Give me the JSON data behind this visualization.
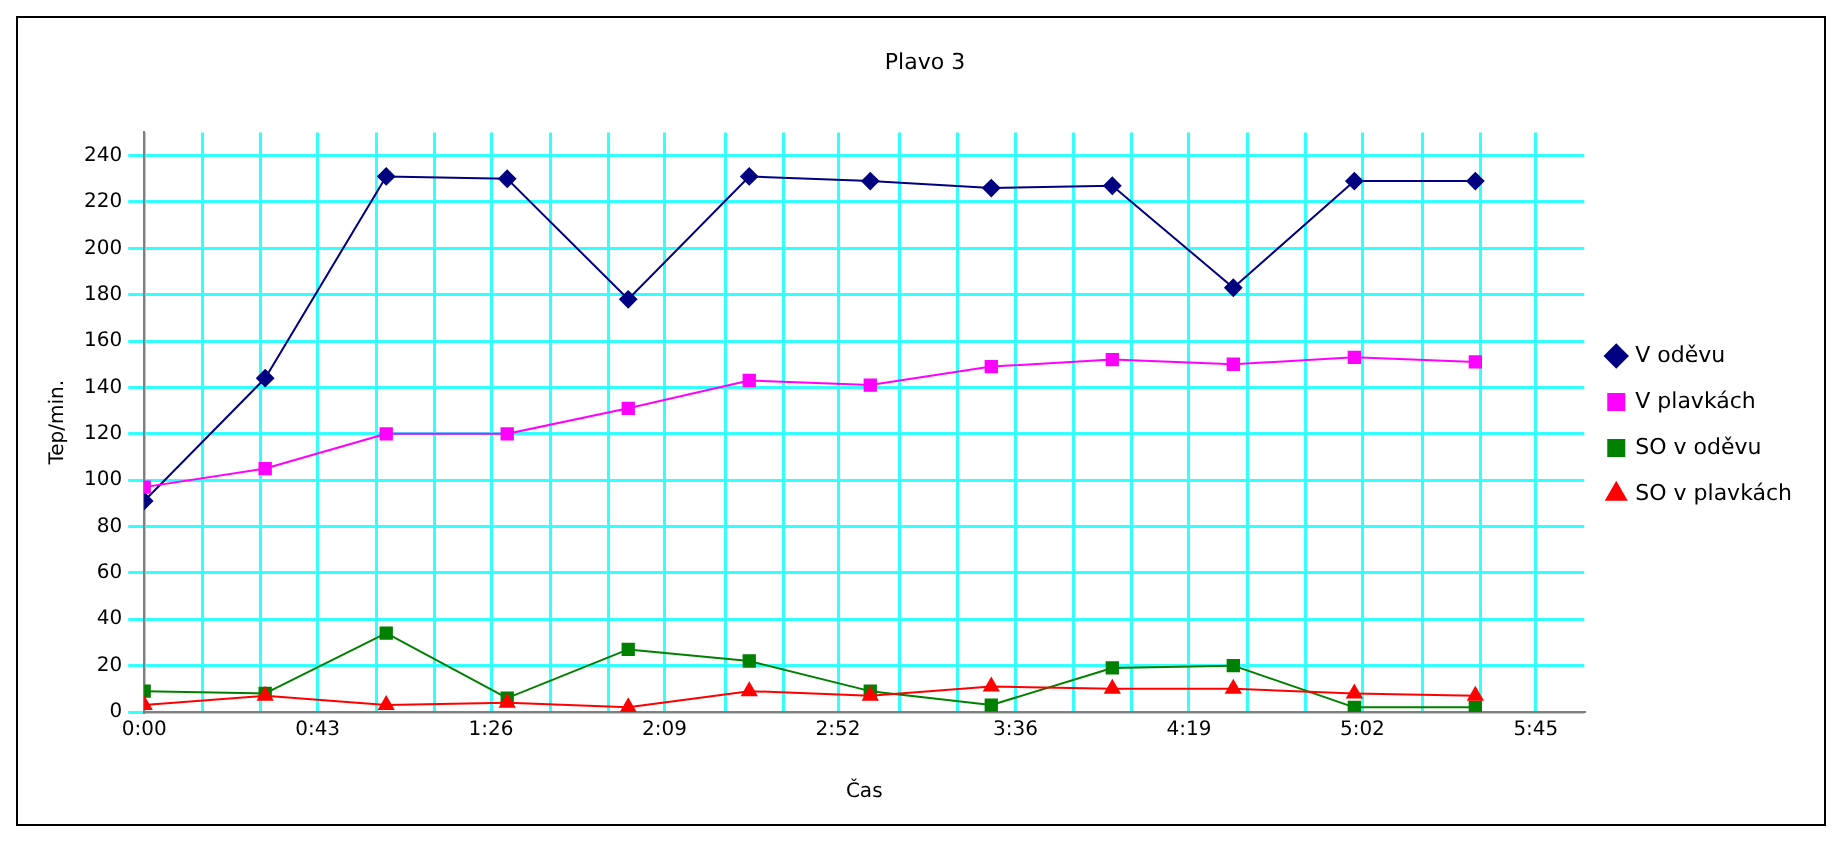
{
  "chart_data": {
    "type": "line",
    "title": "Plavo 3",
    "xlabel": "Čas",
    "ylabel": "Tep/min.",
    "x": [
      0,
      0.5,
      1,
      1.5,
      2,
      2.5,
      3,
      3.5,
      4,
      4.5,
      5,
      5.5
    ],
    "series": [
      {
        "name": "V oděvu",
        "color": "#000080",
        "marker": "diamond",
        "values": [
          91,
          144,
          231,
          230,
          178,
          231,
          229,
          226,
          227,
          183,
          229,
          229
        ]
      },
      {
        "name": "V plavkách",
        "color": "#ff00ff",
        "marker": "square",
        "values": [
          97,
          105,
          120,
          120,
          131,
          143,
          141,
          149,
          152,
          150,
          153,
          151
        ]
      },
      {
        "name": "SO v oděvu",
        "color": "#008000",
        "marker": "square",
        "values": [
          9,
          8,
          34,
          6,
          27,
          22,
          9,
          3,
          19,
          20,
          2,
          2
        ]
      },
      {
        "name": "SO v plavkách",
        "color": "#ff0000",
        "marker": "triangle",
        "values": [
          3,
          7,
          3,
          4,
          2,
          9,
          7,
          11,
          10,
          10,
          8,
          7
        ]
      }
    ],
    "xlim": [
      0,
      5.95
    ],
    "xticks": [
      {
        "value": 0,
        "label": "0:00"
      },
      {
        "value": 0.24,
        "label": null
      },
      {
        "value": 0.48,
        "label": null
      },
      {
        "value": 0.7167,
        "label": "0:43"
      },
      {
        "value": 0.96,
        "label": null
      },
      {
        "value": 1.2,
        "label": null
      },
      {
        "value": 1.4333,
        "label": "1:26"
      },
      {
        "value": 1.68,
        "label": null
      },
      {
        "value": 1.92,
        "label": null
      },
      {
        "value": 2.15,
        "label": "2:09"
      },
      {
        "value": 2.4,
        "label": null
      },
      {
        "value": 2.64,
        "label": null
      },
      {
        "value": 2.8667,
        "label": "2:52"
      },
      {
        "value": 3.12,
        "label": null
      },
      {
        "value": 3.36,
        "label": null
      },
      {
        "value": 3.6,
        "label": "3:36"
      },
      {
        "value": 3.84,
        "label": null
      },
      {
        "value": 4.08,
        "label": null
      },
      {
        "value": 4.3167,
        "label": "4:19"
      },
      {
        "value": 4.56,
        "label": null
      },
      {
        "value": 4.8,
        "label": null
      },
      {
        "value": 5.0333,
        "label": "5:02"
      },
      {
        "value": 5.28,
        "label": null
      },
      {
        "value": 5.52,
        "label": null
      },
      {
        "value": 5.75,
        "label": "5:45"
      }
    ],
    "ylim": [
      0,
      250
    ],
    "yticks": [
      0,
      20,
      40,
      60,
      80,
      100,
      120,
      140,
      160,
      180,
      200,
      220,
      240
    ],
    "grid": true,
    "legend": "right",
    "line_style": "solid"
  }
}
